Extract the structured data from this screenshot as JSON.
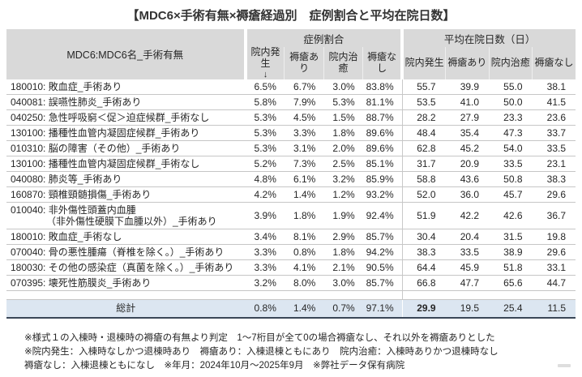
{
  "title": "【MDC6×手術有無×褥瘡経過別　症例割合と平均在院日数】",
  "table": {
    "col1_header": "MDC6:MDC6名_手術有無",
    "group1_header": "症例割合",
    "group2_header": "平均在院日数（日）",
    "subheaders": [
      "院内発生",
      "褥瘡あり",
      "院内治癒",
      "褥瘡なし"
    ],
    "sort_arrow": "↓",
    "rows": [
      {
        "name": "180010: 敗血症_手術あり",
        "pct": [
          "6.5%",
          "6.7%",
          "3.0%",
          "83.8%"
        ],
        "days": [
          "55.7",
          "39.9",
          "55.0",
          "38.1"
        ]
      },
      {
        "name": "040081: 誤嚥性肺炎_手術あり",
        "pct": [
          "5.8%",
          "7.9%",
          "5.3%",
          "81.1%"
        ],
        "days": [
          "53.5",
          "41.0",
          "50.0",
          "41.5"
        ]
      },
      {
        "name": "040250: 急性呼吸窮＜促＞迫症候群_手術なし",
        "pct": [
          "5.3%",
          "4.5%",
          "1.5%",
          "88.7%"
        ],
        "days": [
          "28.2",
          "27.9",
          "23.3",
          "23.6"
        ]
      },
      {
        "name": "130100: 播種性血管内凝固症候群_手術あり",
        "pct": [
          "5.3%",
          "3.3%",
          "1.8%",
          "89.6%"
        ],
        "days": [
          "48.4",
          "35.4",
          "47.3",
          "33.7"
        ]
      },
      {
        "name": "010310: 脳の障害（その他）_手術あり",
        "pct": [
          "5.3%",
          "3.1%",
          "2.0%",
          "89.6%"
        ],
        "days": [
          "62.8",
          "45.2",
          "54.0",
          "33.5"
        ]
      },
      {
        "name": "130100: 播種性血管内凝固症候群_手術なし",
        "pct": [
          "5.2%",
          "7.3%",
          "2.5%",
          "85.1%"
        ],
        "days": [
          "31.7",
          "20.9",
          "33.5",
          "23.1"
        ]
      },
      {
        "name": "040080: 肺炎等_手術あり",
        "pct": [
          "4.8%",
          "6.1%",
          "3.2%",
          "85.9%"
        ],
        "days": [
          "58.8",
          "43.6",
          "50.8",
          "38.3"
        ]
      },
      {
        "name": "160870: 頸椎頸髄損傷_手術あり",
        "pct": [
          "4.2%",
          "1.4%",
          "1.2%",
          "93.2%"
        ],
        "days": [
          "52.0",
          "36.0",
          "45.7",
          "29.6"
        ]
      },
      {
        "name": "010040: 非外傷性頭蓋内血腫",
        "name_line2": "（非外傷性硬膜下血腫以外）_手術あり",
        "pct": [
          "3.9%",
          "1.8%",
          "1.9%",
          "92.4%"
        ],
        "days": [
          "51.9",
          "42.2",
          "42.6",
          "36.7"
        ]
      },
      {
        "name": "180010: 敗血症_手術なし",
        "pct": [
          "3.4%",
          "8.1%",
          "2.9%",
          "85.7%"
        ],
        "days": [
          "30.4",
          "20.4",
          "31.5",
          "19.8"
        ]
      },
      {
        "name": "070040: 骨の悪性腫瘍（脊椎を除く。）_手術あり",
        "pct": [
          "3.3%",
          "0.8%",
          "1.8%",
          "94.2%"
        ],
        "days": [
          "38.3",
          "33.5",
          "38.9",
          "29.6"
        ]
      },
      {
        "name": "180030: その他の感染症（真菌を除く。）_手術あり",
        "pct": [
          "3.3%",
          "4.1%",
          "2.1%",
          "90.5%"
        ],
        "days": [
          "64.4",
          "45.9",
          "51.8",
          "33.1"
        ]
      },
      {
        "name": "070395: 壊死性筋膜炎_手術あり",
        "pct": [
          "3.2%",
          "8.0%",
          "3.0%",
          "85.7%"
        ],
        "days": [
          "66.8",
          "47.7",
          "65.6",
          "44.7"
        ]
      }
    ],
    "total": {
      "label": "総計",
      "pct": [
        "0.8%",
        "1.4%",
        "0.7%",
        "97.1%"
      ],
      "days": [
        "29.9",
        "19.5",
        "25.4",
        "11.5"
      ]
    }
  },
  "footnotes": [
    "※様式１の入棟時・退棟時の褥瘡の有無より判定　1～7桁目が全て0の場合褥瘡なし、それ以外を褥瘡ありとした",
    "※院内発生：入棟時なしかつ退棟時あり　褥瘡あり：入棟退棟ともにあり　院内治癒：入棟時ありかつ退棟時なし",
    "褥瘡なし：入棟退棟ともになし　※年月：2024年10月～2025年9月　※弊社データ保有病院"
  ],
  "colors": {
    "header_bg": "#d9d9d9",
    "total_row_bg": "#dce6f1",
    "row_border": "#c6c6c6",
    "table_bottom_border": "#3a4757"
  }
}
